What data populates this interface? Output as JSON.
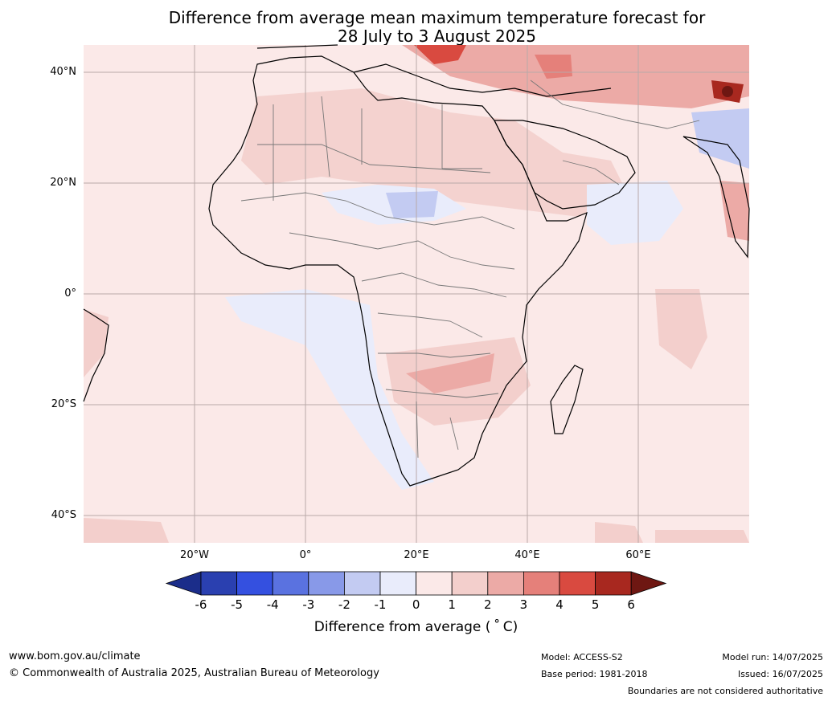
{
  "title": {
    "line1": "Difference from average mean maximum temperature forecast for",
    "line2": "28 July to 3 August 2025"
  },
  "axes": {
    "lat_labels": [
      "40°N",
      "20°N",
      "0°",
      "20°S",
      "40°S"
    ],
    "lon_labels": [
      "20°W",
      "0°",
      "20°E",
      "40°E",
      "60°E"
    ]
  },
  "colorbar": {
    "label": "Difference from average ($^\\circ$C)",
    "label_display": "Difference from average ( ˚ C)",
    "ticks": [
      "-6",
      "-5",
      "-4",
      "-3",
      "-2",
      "-1",
      "0",
      "1",
      "2",
      "3",
      "4",
      "5",
      "6"
    ],
    "colors": [
      "#1b2d8a",
      "#2a40b0",
      "#3450e0",
      "#5a72e0",
      "#8899e8",
      "#c3cbf2",
      "#e9ecfb",
      "#fbe9e8",
      "#f3cfcc",
      "#ecaaa6",
      "#e5807a",
      "#d94a40",
      "#a8281f",
      "#6e1712"
    ]
  },
  "footer": {
    "url": "www.bom.gov.au/climate",
    "copyright": "© Commonwealth of Australia 2025, Australian Bureau of Meteorology",
    "model": "Model: ACCESS-S2",
    "base_period": "Base period: 1981-2018",
    "model_run": "Model run: 14/07/2025",
    "issued": "Issued: 16/07/2025",
    "boundaries": "Boundaries are not considered authoritative"
  }
}
